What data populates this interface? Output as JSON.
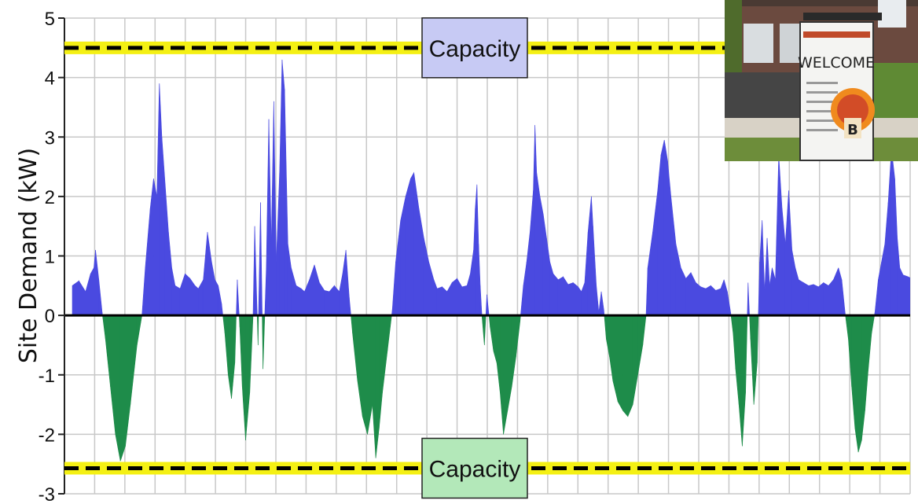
{
  "chart_data": {
    "type": "area",
    "title": "",
    "ylabel": "Site Demand (kW)",
    "xlabel": "",
    "ylim": [
      -3,
      5
    ],
    "y_ticks": [
      "-3",
      "-2",
      "-1",
      "0",
      "1",
      "2",
      "3",
      "4",
      "5"
    ],
    "grid": true,
    "capacity_lines": [
      {
        "label": "Capacity",
        "value": 4.5,
        "box_color": "#c7caf4"
      },
      {
        "label": "Capacity",
        "value": -2.57,
        "box_color": "#b3e8b9"
      }
    ],
    "colors": {
      "positive": "#4a4ae0",
      "negative": "#1e8c4a",
      "capacity_line": "#000000",
      "capacity_glow": "#f4f014",
      "grid": "#c8c8c8"
    },
    "series": [
      {
        "points": [
          [
            0,
            0.5
          ],
          [
            0.008,
            0.58
          ],
          [
            0.016,
            0.4
          ],
          [
            0.022,
            0.7
          ],
          [
            0.026,
            0.8
          ],
          [
            0.028,
            1.1
          ],
          [
            0.032,
            0.6
          ],
          [
            0.036,
            0.05
          ],
          [
            0.04,
            -0.4
          ],
          [
            0.046,
            -1.2
          ],
          [
            0.052,
            -2.0
          ],
          [
            0.058,
            -2.45
          ],
          [
            0.064,
            -2.2
          ],
          [
            0.07,
            -1.5
          ],
          [
            0.078,
            -0.5
          ],
          [
            0.084,
            0.0
          ],
          [
            0.088,
            0.8
          ],
          [
            0.094,
            1.8
          ],
          [
            0.098,
            2.3
          ],
          [
            0.102,
            2.0
          ],
          [
            0.105,
            3.9
          ],
          [
            0.108,
            3.0
          ],
          [
            0.112,
            2.2
          ],
          [
            0.116,
            1.4
          ],
          [
            0.12,
            0.8
          ],
          [
            0.124,
            0.5
          ],
          [
            0.13,
            0.45
          ],
          [
            0.136,
            0.7
          ],
          [
            0.142,
            0.62
          ],
          [
            0.148,
            0.5
          ],
          [
            0.152,
            0.45
          ],
          [
            0.158,
            0.6
          ],
          [
            0.163,
            1.4
          ],
          [
            0.168,
            0.9
          ],
          [
            0.172,
            0.6
          ],
          [
            0.176,
            0.5
          ],
          [
            0.18,
            0.2
          ],
          [
            0.184,
            -0.3
          ],
          [
            0.188,
            -1.0
          ],
          [
            0.192,
            -1.4
          ],
          [
            0.196,
            -0.8
          ],
          [
            0.199,
            0.6
          ],
          [
            0.202,
            -0.2
          ],
          [
            0.205,
            -1.2
          ],
          [
            0.209,
            -2.1
          ],
          [
            0.214,
            -1.3
          ],
          [
            0.218,
            0.0
          ],
          [
            0.22,
            1.5
          ],
          [
            0.224,
            -0.5
          ],
          [
            0.227,
            1.9
          ],
          [
            0.23,
            -0.9
          ],
          [
            0.234,
            0.8
          ],
          [
            0.237,
            3.3
          ],
          [
            0.24,
            1.2
          ],
          [
            0.243,
            3.6
          ],
          [
            0.246,
            0.9
          ],
          [
            0.25,
            2.4
          ],
          [
            0.253,
            4.3
          ],
          [
            0.256,
            3.8
          ],
          [
            0.26,
            1.2
          ],
          [
            0.264,
            0.8
          ],
          [
            0.27,
            0.5
          ],
          [
            0.276,
            0.45
          ],
          [
            0.28,
            0.4
          ],
          [
            0.286,
            0.6
          ],
          [
            0.292,
            0.85
          ],
          [
            0.298,
            0.55
          ],
          [
            0.304,
            0.42
          ],
          [
            0.31,
            0.4
          ],
          [
            0.316,
            0.5
          ],
          [
            0.322,
            0.4
          ],
          [
            0.326,
            0.7
          ],
          [
            0.33,
            1.1
          ],
          [
            0.334,
            0.3
          ],
          [
            0.338,
            -0.3
          ],
          [
            0.344,
            -1.1
          ],
          [
            0.35,
            -1.7
          ],
          [
            0.356,
            -2.0
          ],
          [
            0.362,
            -1.5
          ],
          [
            0.366,
            -2.4
          ],
          [
            0.37,
            -1.9
          ],
          [
            0.374,
            -1.3
          ],
          [
            0.38,
            -0.6
          ],
          [
            0.386,
            0.1
          ],
          [
            0.39,
            0.9
          ],
          [
            0.396,
            1.6
          ],
          [
            0.402,
            2.0
          ],
          [
            0.408,
            2.3
          ],
          [
            0.412,
            2.4
          ],
          [
            0.418,
            1.8
          ],
          [
            0.424,
            1.3
          ],
          [
            0.43,
            0.9
          ],
          [
            0.436,
            0.6
          ],
          [
            0.44,
            0.45
          ],
          [
            0.446,
            0.48
          ],
          [
            0.452,
            0.4
          ],
          [
            0.458,
            0.55
          ],
          [
            0.464,
            0.62
          ],
          [
            0.47,
            0.48
          ],
          [
            0.476,
            0.5
          ],
          [
            0.48,
            0.7
          ],
          [
            0.484,
            1.1
          ],
          [
            0.486,
            1.8
          ],
          [
            0.488,
            2.2
          ],
          [
            0.49,
            1.2
          ],
          [
            0.492,
            0.5
          ],
          [
            0.494,
            0.0
          ],
          [
            0.497,
            -0.5
          ],
          [
            0.5,
            0.35
          ],
          [
            0.504,
            -0.2
          ],
          [
            0.508,
            -0.6
          ],
          [
            0.512,
            -0.8
          ],
          [
            0.516,
            -1.3
          ],
          [
            0.52,
            -2.0
          ],
          [
            0.525,
            -1.6
          ],
          [
            0.53,
            -1.2
          ],
          [
            0.535,
            -0.7
          ],
          [
            0.54,
            -0.1
          ],
          [
            0.544,
            0.5
          ],
          [
            0.548,
            0.9
          ],
          [
            0.552,
            1.4
          ],
          [
            0.556,
            2.1
          ],
          [
            0.558,
            3.2
          ],
          [
            0.56,
            2.4
          ],
          [
            0.564,
            2.0
          ],
          [
            0.568,
            1.7
          ],
          [
            0.572,
            1.3
          ],
          [
            0.576,
            0.9
          ],
          [
            0.58,
            0.7
          ],
          [
            0.586,
            0.6
          ],
          [
            0.592,
            0.65
          ],
          [
            0.598,
            0.52
          ],
          [
            0.604,
            0.55
          ],
          [
            0.61,
            0.48
          ],
          [
            0.614,
            0.4
          ],
          [
            0.618,
            0.55
          ],
          [
            0.622,
            1.4
          ],
          [
            0.626,
            2.0
          ],
          [
            0.628,
            1.5
          ],
          [
            0.632,
            0.5
          ],
          [
            0.635,
            0.05
          ],
          [
            0.638,
            0.4
          ],
          [
            0.641,
            0.1
          ],
          [
            0.644,
            -0.4
          ],
          [
            0.648,
            -0.7
          ],
          [
            0.652,
            -1.1
          ],
          [
            0.658,
            -1.45
          ],
          [
            0.664,
            -1.6
          ],
          [
            0.67,
            -1.7
          ],
          [
            0.676,
            -1.5
          ],
          [
            0.682,
            -1.0
          ],
          [
            0.688,
            -0.5
          ],
          [
            0.692,
            0.0
          ],
          [
            0.694,
            0.8
          ],
          [
            0.7,
            1.4
          ],
          [
            0.706,
            2.1
          ],
          [
            0.71,
            2.7
          ],
          [
            0.714,
            2.95
          ],
          [
            0.718,
            2.6
          ],
          [
            0.722,
            2.0
          ],
          [
            0.728,
            1.2
          ],
          [
            0.734,
            0.8
          ],
          [
            0.74,
            0.62
          ],
          [
            0.746,
            0.72
          ],
          [
            0.752,
            0.55
          ],
          [
            0.758,
            0.48
          ],
          [
            0.764,
            0.45
          ],
          [
            0.77,
            0.5
          ],
          [
            0.776,
            0.42
          ],
          [
            0.782,
            0.45
          ],
          [
            0.786,
            0.6
          ],
          [
            0.79,
            0.4
          ],
          [
            0.794,
            0.05
          ],
          [
            0.797,
            -0.3
          ],
          [
            0.8,
            -0.9
          ],
          [
            0.804,
            -1.5
          ],
          [
            0.808,
            -2.2
          ],
          [
            0.812,
            -1.3
          ],
          [
            0.815,
            0.55
          ],
          [
            0.818,
            -0.4
          ],
          [
            0.822,
            -1.5
          ],
          [
            0.826,
            -0.8
          ],
          [
            0.829,
            0.9
          ],
          [
            0.832,
            1.6
          ],
          [
            0.835,
            0.4
          ],
          [
            0.838,
            1.3
          ],
          [
            0.841,
            0.5
          ],
          [
            0.844,
            0.8
          ],
          [
            0.848,
            0.6
          ],
          [
            0.852,
            2.7
          ],
          [
            0.856,
            1.8
          ],
          [
            0.86,
            1.2
          ],
          [
            0.864,
            2.1
          ],
          [
            0.868,
            1.1
          ],
          [
            0.872,
            0.8
          ],
          [
            0.876,
            0.6
          ],
          [
            0.882,
            0.55
          ],
          [
            0.888,
            0.5
          ],
          [
            0.894,
            0.52
          ],
          [
            0.9,
            0.48
          ],
          [
            0.906,
            0.55
          ],
          [
            0.912,
            0.5
          ],
          [
            0.918,
            0.6
          ],
          [
            0.924,
            0.8
          ],
          [
            0.928,
            0.6
          ],
          [
            0.932,
            0.05
          ],
          [
            0.936,
            -0.4
          ],
          [
            0.94,
            -1.2
          ],
          [
            0.944,
            -1.9
          ],
          [
            0.948,
            -2.3
          ],
          [
            0.952,
            -2.1
          ],
          [
            0.956,
            -1.6
          ],
          [
            0.96,
            -0.9
          ],
          [
            0.964,
            -0.3
          ],
          [
            0.968,
            0.05
          ],
          [
            0.972,
            0.6
          ],
          [
            0.976,
            0.9
          ],
          [
            0.98,
            1.2
          ],
          [
            0.984,
            1.9
          ],
          [
            0.988,
            2.8
          ],
          [
            0.992,
            2.3
          ],
          [
            0.995,
            1.3
          ],
          [
            0.998,
            0.8
          ],
          [
            1.002,
            0.68
          ],
          [
            1.008,
            0.65
          ],
          [
            1.012,
            0.62
          ]
        ]
      }
    ]
  },
  "inset_photo": {
    "sign_heading": "WELCOME",
    "sign_badge": "B"
  }
}
